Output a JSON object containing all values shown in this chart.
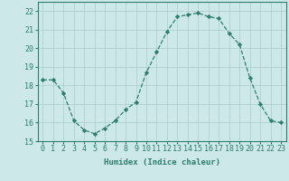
{
  "x": [
    0,
    1,
    2,
    3,
    4,
    5,
    6,
    7,
    8,
    9,
    10,
    11,
    12,
    13,
    14,
    15,
    16,
    17,
    18,
    19,
    20,
    21,
    22,
    23
  ],
  "y": [
    18.3,
    18.3,
    17.6,
    16.1,
    15.6,
    15.4,
    15.7,
    16.1,
    16.7,
    17.1,
    18.7,
    19.8,
    20.9,
    21.7,
    21.8,
    21.9,
    21.7,
    21.6,
    20.8,
    20.2,
    18.4,
    17.0,
    16.1,
    16.0
  ],
  "line_color": "#2e7d6e",
  "marker": "D",
  "marker_size": 2.2,
  "bg_color": "#cce8e8",
  "grid_color": "#aacccc",
  "xlabel": "Humidex (Indice chaleur)",
  "ylim": [
    15,
    22.5
  ],
  "xlim": [
    -0.5,
    23.5
  ],
  "yticks": [
    15,
    16,
    17,
    18,
    19,
    20,
    21,
    22
  ],
  "xticks": [
    0,
    1,
    2,
    3,
    4,
    5,
    6,
    7,
    8,
    9,
    10,
    11,
    12,
    13,
    14,
    15,
    16,
    17,
    18,
    19,
    20,
    21,
    22,
    23
  ],
  "xlabel_fontsize": 6.5,
  "tick_fontsize": 6.0,
  "line_width": 0.9
}
